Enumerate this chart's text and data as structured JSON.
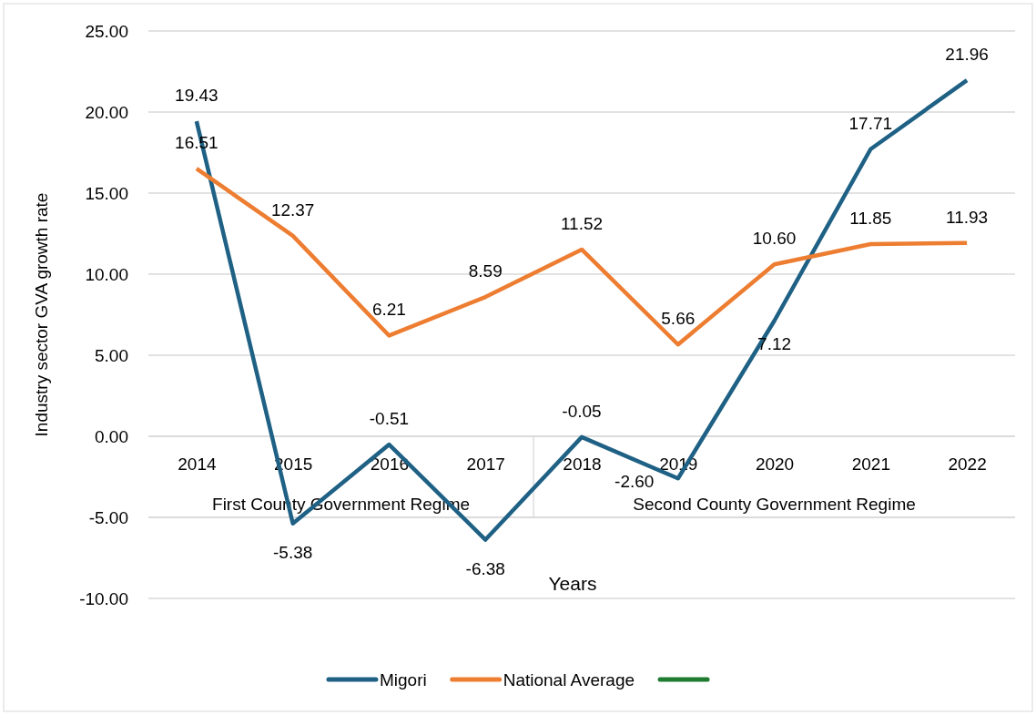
{
  "chart_data": {
    "type": "line",
    "ylabel": "Industry  sector GVA growth rate",
    "xlabel": "Years",
    "categories": [
      "2014",
      "2015",
      "2016",
      "2017",
      "2018",
      "2019",
      "2020",
      "2021",
      "2022"
    ],
    "series": [
      {
        "name": "Migori",
        "color": "#1f6185",
        "values": [
          19.43,
          -5.38,
          -0.51,
          -6.38,
          -0.05,
          -2.6,
          7.12,
          17.71,
          21.96
        ],
        "value_labels": [
          "19.43",
          "-5.38",
          "-0.51",
          "-6.38",
          "-0.05",
          "-2.60",
          "7.12",
          "17.71",
          "21.96"
        ]
      },
      {
        "name": "National Average",
        "color": "#ed7d31",
        "values": [
          16.51,
          12.37,
          6.21,
          8.59,
          11.52,
          5.66,
          10.6,
          11.85,
          11.93
        ],
        "value_labels": [
          "16.51",
          "12.37",
          "6.21",
          "8.59",
          "11.52",
          "5.66",
          "10.60",
          "11.85",
          "11.93"
        ]
      },
      {
        "color": "#1e7b30",
        "values": [
          null,
          null,
          null,
          null,
          null,
          null,
          null,
          null,
          null
        ]
      }
    ],
    "annotations": [
      "First County Government Regime",
      "Second County Government Regime"
    ],
    "ylim": [
      -10,
      25
    ],
    "yticks": [
      {
        "value": -10,
        "label": "-10.00"
      },
      {
        "value": -5,
        "label": "-5.00"
      },
      {
        "value": 0,
        "label": "0.00"
      },
      {
        "value": 5,
        "label": "5.00"
      },
      {
        "value": 10,
        "label": "10.00"
      },
      {
        "value": 15,
        "label": "15.00"
      },
      {
        "value": 20,
        "label": "20.00"
      },
      {
        "value": 25,
        "label": "25.00"
      }
    ],
    "grid": "y",
    "legend": "bottom",
    "marker": "none",
    "line_style": "solid"
  }
}
